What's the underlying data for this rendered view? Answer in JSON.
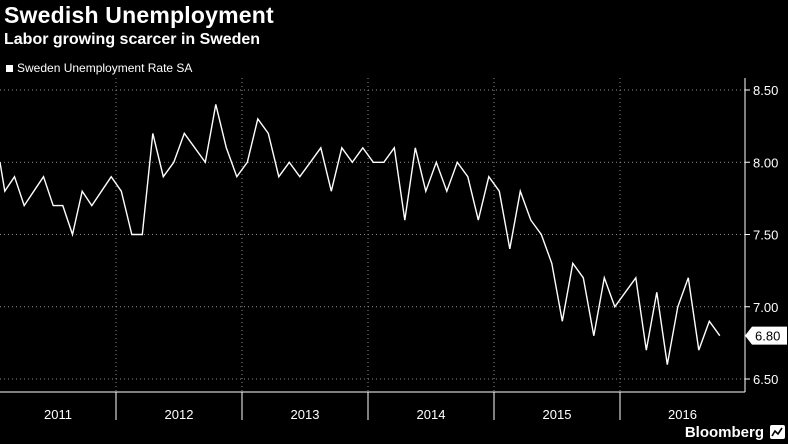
{
  "header": {
    "title": "Swedish Unemployment",
    "subtitle": "Labor growing scarcer in Sweden",
    "legend_label": "Sweden Unemployment Rate SA"
  },
  "footer": {
    "brand": "Bloomberg",
    "logo_icon": "bloomberg-chart-icon"
  },
  "colors": {
    "background": "#000000",
    "line": "#ffffff",
    "grid": "#8a8a8a"
  },
  "chart_data": {
    "type": "line",
    "series": [
      {
        "name": "Sweden Unemployment Rate SA",
        "start": "2010-12",
        "values": [
          8.0,
          7.8,
          7.9,
          7.7,
          7.8,
          7.9,
          7.7,
          7.7,
          7.5,
          7.8,
          7.7,
          7.8,
          7.9,
          7.8,
          7.5,
          7.5,
          8.2,
          7.9,
          8.0,
          8.2,
          8.1,
          8.0,
          8.4,
          8.1,
          7.9,
          8.0,
          8.3,
          8.2,
          7.9,
          8.0,
          7.9,
          8.0,
          8.1,
          7.8,
          8.1,
          8.0,
          8.1,
          8.0,
          8.0,
          8.1,
          7.6,
          8.1,
          7.8,
          8.0,
          7.8,
          8.0,
          7.9,
          7.6,
          7.9,
          7.8,
          7.4,
          7.8,
          7.6,
          7.5,
          7.3,
          6.9,
          7.3,
          7.2,
          6.8,
          7.2,
          7.0,
          7.1,
          7.2,
          6.7,
          7.1,
          6.6,
          7.0,
          7.2,
          6.7,
          6.9,
          6.8
        ]
      }
    ],
    "x_labels": [
      "2011",
      "2012",
      "2013",
      "2014",
      "2015",
      "2016"
    ],
    "y_ticks": [
      "6.50",
      "7.00",
      "7.50",
      "8.00",
      "8.50"
    ],
    "ylim": [
      6.5,
      8.5
    ],
    "last_value_label": "6.80",
    "grid": true,
    "y_axis_position": "right"
  }
}
